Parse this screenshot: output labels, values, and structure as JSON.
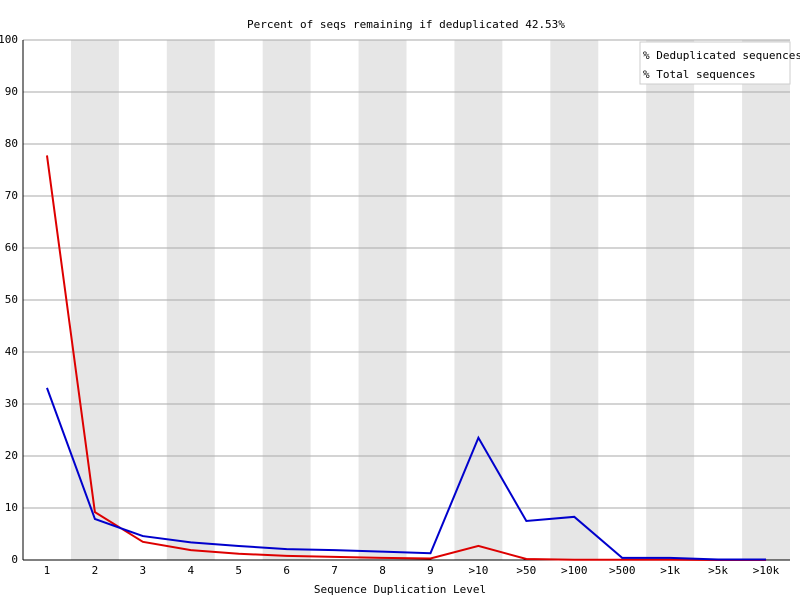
{
  "chart_data": {
    "type": "line",
    "title": "Percent of seqs remaining if deduplicated 42.53%",
    "x_label": "Sequence Duplication Level",
    "categories": [
      "1",
      "2",
      "3",
      "4",
      "5",
      "6",
      "7",
      "8",
      "9",
      ">10",
      ">50",
      ">100",
      ">500",
      ">1k",
      ">5k",
      ">10k"
    ],
    "series": [
      {
        "name": "% Deduplicated sequences",
        "color": "#dd0000",
        "values": [
          77.8,
          9.2,
          3.5,
          1.9,
          1.2,
          0.8,
          0.6,
          0.4,
          0.3,
          2.7,
          0.2,
          0.05,
          0.05,
          0.05,
          0.0,
          0.0
        ]
      },
      {
        "name": "% Total sequences",
        "color": "#0000cc",
        "values": [
          33.1,
          7.9,
          4.6,
          3.4,
          2.7,
          2.1,
          1.9,
          1.6,
          1.3,
          23.5,
          7.5,
          8.3,
          0.4,
          0.4,
          0.1,
          0.1
        ]
      }
    ],
    "ylim": [
      0,
      100
    ],
    "yticks": [
      0,
      10,
      20,
      30,
      40,
      50,
      60,
      70,
      80,
      90,
      100
    ],
    "grid": true,
    "legend": "top-right"
  }
}
